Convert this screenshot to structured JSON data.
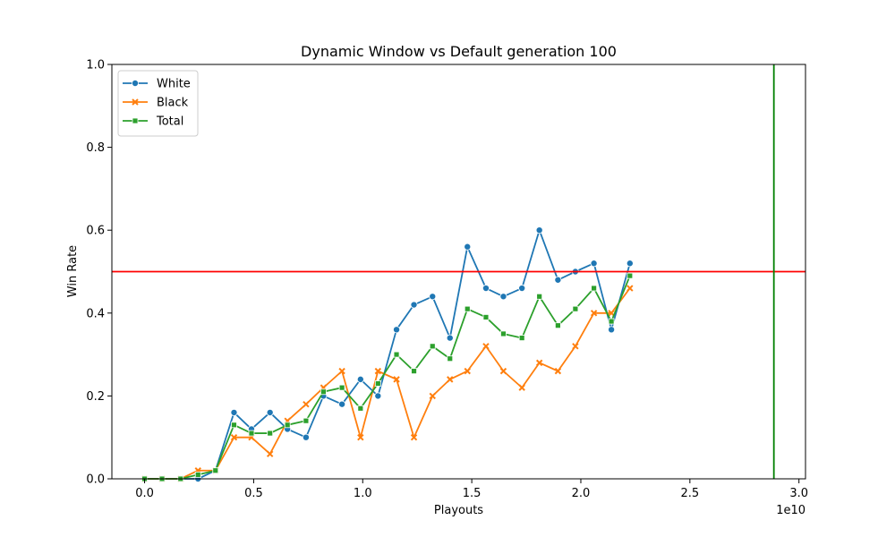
{
  "chart_data": {
    "type": "line",
    "title": "Dynamic Window vs Default generation 100",
    "xlabel": "Playouts",
    "ylabel": "Win Rate",
    "x_offset_text": "1e10",
    "xlim": [
      -0.15,
      3.03
    ],
    "ylim": [
      0.0,
      1.0
    ],
    "x_ticks": [
      0.0,
      0.5,
      1.0,
      1.5,
      2.0,
      2.5,
      3.0
    ],
    "x_tick_labels": [
      "0.0",
      "0.5",
      "1.0",
      "1.5",
      "2.0",
      "2.5",
      "3.0"
    ],
    "y_ticks": [
      0.0,
      0.2,
      0.4,
      0.6,
      0.8,
      1.0
    ],
    "y_tick_labels": [
      "0.0",
      "0.2",
      "0.4",
      "0.6",
      "0.8",
      "1.0"
    ],
    "grid": false,
    "legend_position": "top-left",
    "x": [
      0.0,
      0.08,
      0.165,
      0.245,
      0.325,
      0.41,
      0.49,
      0.575,
      0.655,
      0.74,
      0.82,
      0.905,
      0.99,
      1.07,
      1.155,
      1.235,
      1.32,
      1.4,
      1.48,
      1.565,
      1.645,
      1.73,
      1.81,
      1.895,
      1.975,
      2.06,
      2.14,
      2.225,
      2.305
    ],
    "series": [
      {
        "name": "White",
        "color": "#1f77b4",
        "marker": "circle",
        "values": [
          0.0,
          0.0,
          0.0,
          0.0,
          0.02,
          0.16,
          0.12,
          0.16,
          0.12,
          0.1,
          0.2,
          0.18,
          0.24,
          0.2,
          0.36,
          0.42,
          0.44,
          0.34,
          0.56,
          0.46,
          0.44,
          0.46,
          0.6,
          0.48,
          0.5,
          0.52,
          0.36,
          0.52,
          null
        ]
      },
      {
        "name": "Black",
        "color": "#ff7f0e",
        "marker": "x",
        "values": [
          0.0,
          0.0,
          0.0,
          0.02,
          0.02,
          0.1,
          0.1,
          0.06,
          0.14,
          0.18,
          0.22,
          0.26,
          0.1,
          0.26,
          0.24,
          0.1,
          0.2,
          0.24,
          0.26,
          0.32,
          0.26,
          0.22,
          0.28,
          0.26,
          0.32,
          0.4,
          0.4,
          0.46,
          null
        ]
      },
      {
        "name": "Total",
        "color": "#2ca02c",
        "marker": "square",
        "values": [
          0.0,
          0.0,
          0.0,
          0.01,
          0.02,
          0.13,
          0.11,
          0.11,
          0.13,
          0.14,
          0.21,
          0.22,
          0.17,
          0.23,
          0.3,
          0.26,
          0.32,
          0.29,
          0.41,
          0.39,
          0.35,
          0.34,
          0.44,
          0.37,
          0.41,
          0.46,
          0.38,
          0.49,
          null
        ]
      }
    ],
    "reference_lines": [
      {
        "orientation": "horizontal",
        "value": 0.5,
        "color": "#ff0000"
      },
      {
        "orientation": "vertical",
        "value": 2.885,
        "color": "#008000"
      }
    ]
  }
}
